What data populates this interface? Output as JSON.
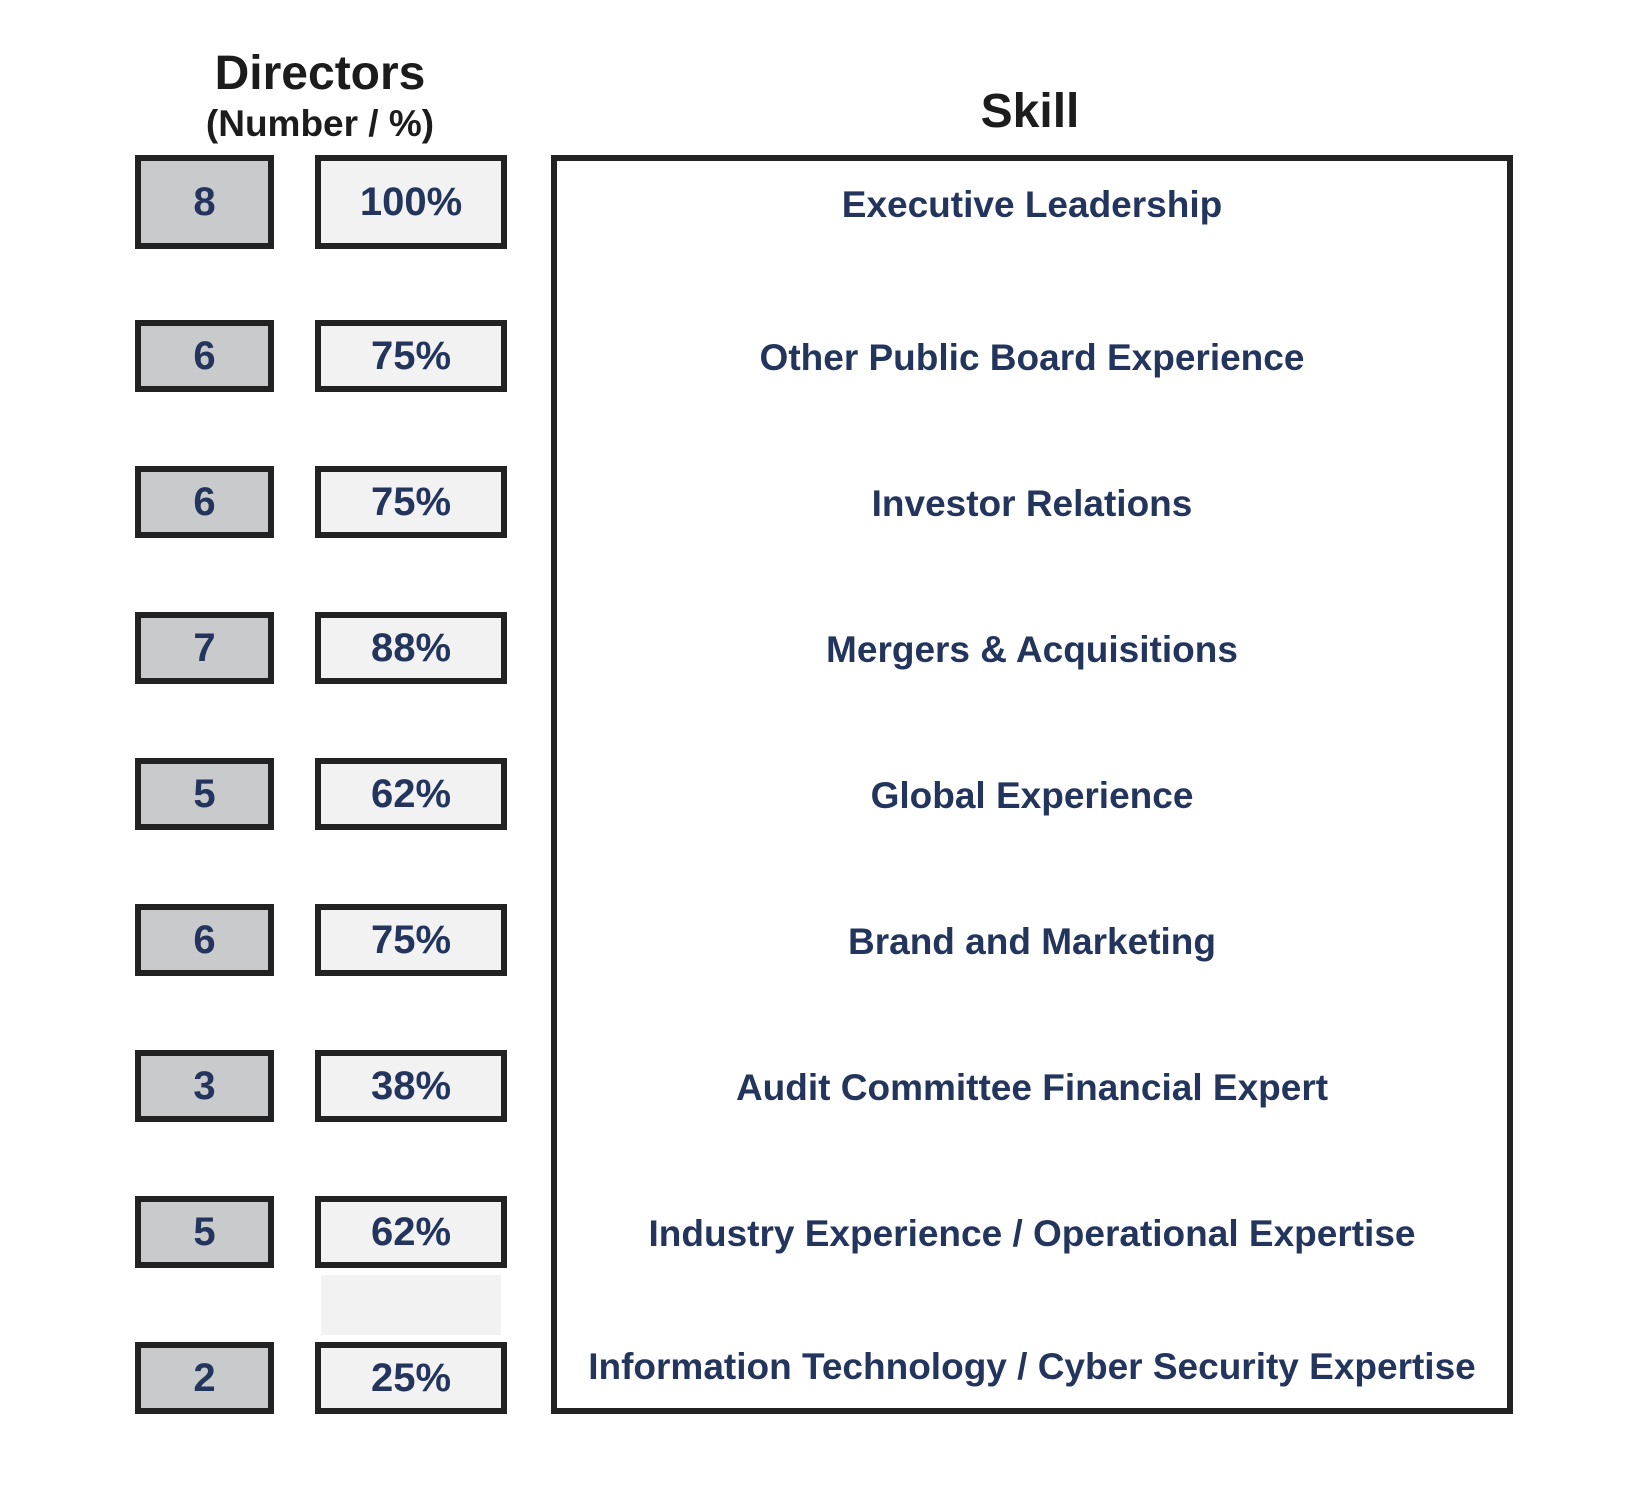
{
  "headers": {
    "directors_title": "Directors",
    "directors_subtitle": "(Number / %)",
    "skill_title": "Skill"
  },
  "rows": [
    {
      "number": "8",
      "percent": "100%",
      "skill": "Executive Leadership"
    },
    {
      "number": "6",
      "percent": "75%",
      "skill": "Other Public Board Experience"
    },
    {
      "number": "6",
      "percent": "75%",
      "skill": "Investor Relations"
    },
    {
      "number": "7",
      "percent": "88%",
      "skill": "Mergers & Acquisitions"
    },
    {
      "number": "5",
      "percent": "62%",
      "skill": "Global Experience"
    },
    {
      "number": "6",
      "percent": "75%",
      "skill": "Brand and Marketing"
    },
    {
      "number": "3",
      "percent": "38%",
      "skill": "Audit Committee Financial Expert"
    },
    {
      "number": "5",
      "percent": "62%",
      "skill": "Industry Experience / Operational Expertise"
    },
    {
      "number": "2",
      "percent": "25%",
      "skill": "Information Technology / Cyber Security Expertise"
    }
  ],
  "colors": {
    "text_blue": "#23355d",
    "number_box_fill": "#c8cacb",
    "percent_box_fill": "#f2f2f3",
    "border": "#222222"
  }
}
